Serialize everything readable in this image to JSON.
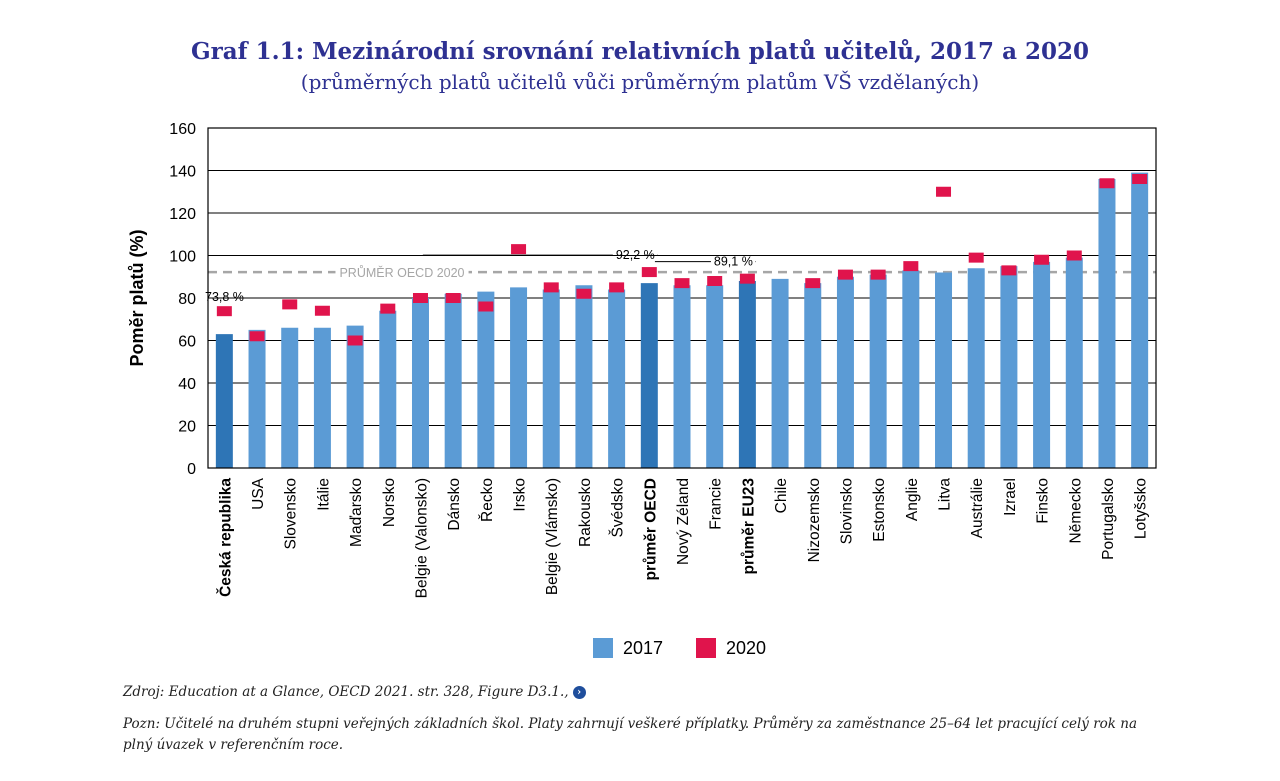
{
  "title": "Graf 1.1: Mezinárodní srovnání relativních platů učitelů, 2017 a 2020",
  "subtitle": "(průměrných platů učitelů vůči průměrným platům VŠ vzdělaných)",
  "source": "Zdroj: Education at a Glance, OECD 2021. str. 328, Figure D3.1.,",
  "note": "Pozn: Učitelé na druhém stupni veřejných základních škol. Platy zahrnují veškeré příplatky. Průměry za zaměstnance 25–64 let pracující celý rok na plný úvazek v referenčním roce.",
  "colors": {
    "bar_2017": "#5b9bd5",
    "bar_highlight": "#2e75b6",
    "bar_2020": "#e0144c",
    "reference_line": "#a6a6a6",
    "title": "#2e3192"
  },
  "chart_data": {
    "type": "bar",
    "ylabel": "Poměr platů (%)",
    "ylim": [
      0,
      160
    ],
    "yticks": [
      "0",
      "20",
      "40",
      "60",
      "80",
      "100",
      "120",
      "140",
      "160"
    ],
    "grid": true,
    "legend_position": "bottom",
    "categories": [
      "Česká republika",
      "USA",
      "Slovensko",
      "Itálie",
      "Maďarsko",
      "Norsko",
      "Belgie (Valonsko)",
      "Dánsko",
      "Řecko",
      "Irsko",
      "Belgie (Vlámsko)",
      "Rakousko",
      "Švédsko",
      "průměr OECD",
      "Nový Zéland",
      "Francie",
      "průměr EU23",
      "Chile",
      "Nizozemsko",
      "Slovinsko",
      "Estonsko",
      "Anglie",
      "Litva",
      "Austrálie",
      "Izrael",
      "Finsko",
      "Německo",
      "Portugalsko",
      "Lotyšsko"
    ],
    "bold_categories": [
      "Česká republika",
      "průměr OECD",
      "průměr EU23"
    ],
    "highlighted_categories": [
      "Česká republika",
      "průměr OECD",
      "průměr EU23"
    ],
    "series": [
      {
        "name": "2017",
        "values": [
          63,
          65,
          66,
          66,
          67,
          74,
          80,
          82,
          83,
          85,
          84,
          86,
          84,
          87,
          86,
          86,
          88,
          89,
          87,
          90,
          91,
          93,
          92,
          94,
          95,
          97,
          99,
          136,
          139
        ]
      },
      {
        "name": "2020",
        "values": [
          73.8,
          62,
          77,
          74,
          60,
          75,
          80,
          80,
          76,
          103,
          85,
          82,
          85,
          92.2,
          87,
          88,
          89.1,
          null,
          87,
          91,
          91,
          95,
          130,
          99,
          93,
          98,
          100,
          134,
          136
        ]
      }
    ],
    "reference_line": {
      "label": "PRŮMĚR OECD 2020",
      "value": 92.2
    },
    "annotations": [
      {
        "category": "Česká republika",
        "text": "73,8 %"
      },
      {
        "category": "průměr OECD",
        "text": "92,2 %"
      },
      {
        "category": "průměr EU23",
        "text": "89,1 %"
      }
    ]
  }
}
